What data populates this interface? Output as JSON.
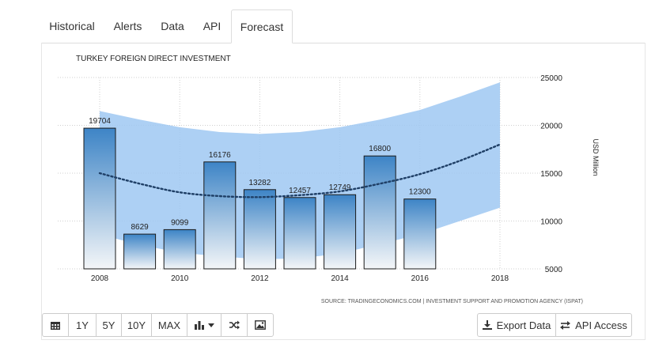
{
  "tabs": [
    {
      "label": "Historical"
    },
    {
      "label": "Alerts"
    },
    {
      "label": "Data"
    },
    {
      "label": "API"
    },
    {
      "label": "Forecast"
    }
  ],
  "active_tab": "Forecast",
  "toolbar": {
    "buttons": [
      "1Y",
      "5Y",
      "10Y",
      "MAX"
    ],
    "icons": [
      "calendar-icon",
      "bar-chart-icon",
      "caret-down-icon",
      "shuffle-icon",
      "image-icon"
    ],
    "export_label": "Export Data",
    "api_label": "API Access"
  },
  "colors": {
    "bar_top": "#3d84c6",
    "bar_bottom": "#f4f6f8",
    "band": "#9fc8f2",
    "forecast_line": "#1f3f66"
  },
  "chart_data": {
    "type": "bar",
    "title": "TURKEY FOREIGN DIRECT INVESTMENT",
    "ylabel": "USD Million",
    "ylim": [
      5000,
      25000
    ],
    "yticks": [
      5000,
      10000,
      15000,
      20000,
      25000
    ],
    "xticks": [
      "2008",
      "2010",
      "2012",
      "2014",
      "2016",
      "2018"
    ],
    "years": [
      2008,
      2009,
      2010,
      2011,
      2012,
      2013,
      2014,
      2015,
      2016
    ],
    "values": [
      19704,
      8629,
      9099,
      16176,
      13282,
      12457,
      12749,
      16800,
      12300
    ],
    "forecast": {
      "x": [
        2008,
        2009,
        2010,
        2011,
        2012,
        2013,
        2014,
        2015,
        2016,
        2017,
        2018
      ],
      "y": [
        15000,
        13900,
        13000,
        12600,
        12500,
        12700,
        13100,
        13900,
        14900,
        16300,
        18000
      ]
    },
    "band": {
      "x": [
        2008,
        2009,
        2010,
        2011,
        2012,
        2013,
        2014,
        2015,
        2016,
        2017,
        2018
      ],
      "upper": [
        21500,
        20600,
        19800,
        19300,
        19100,
        19300,
        19800,
        20600,
        21600,
        23000,
        24500
      ],
      "lower": [
        8600,
        7500,
        6700,
        6300,
        6000,
        6100,
        6600,
        7600,
        8600,
        10000,
        11400
      ]
    },
    "source": "SOURCE: TRADINGECONOMICS.COM  |  INVESTMENT SUPPORT AND PROMOTION AGENCY (ISPAT)",
    "grid": true
  }
}
